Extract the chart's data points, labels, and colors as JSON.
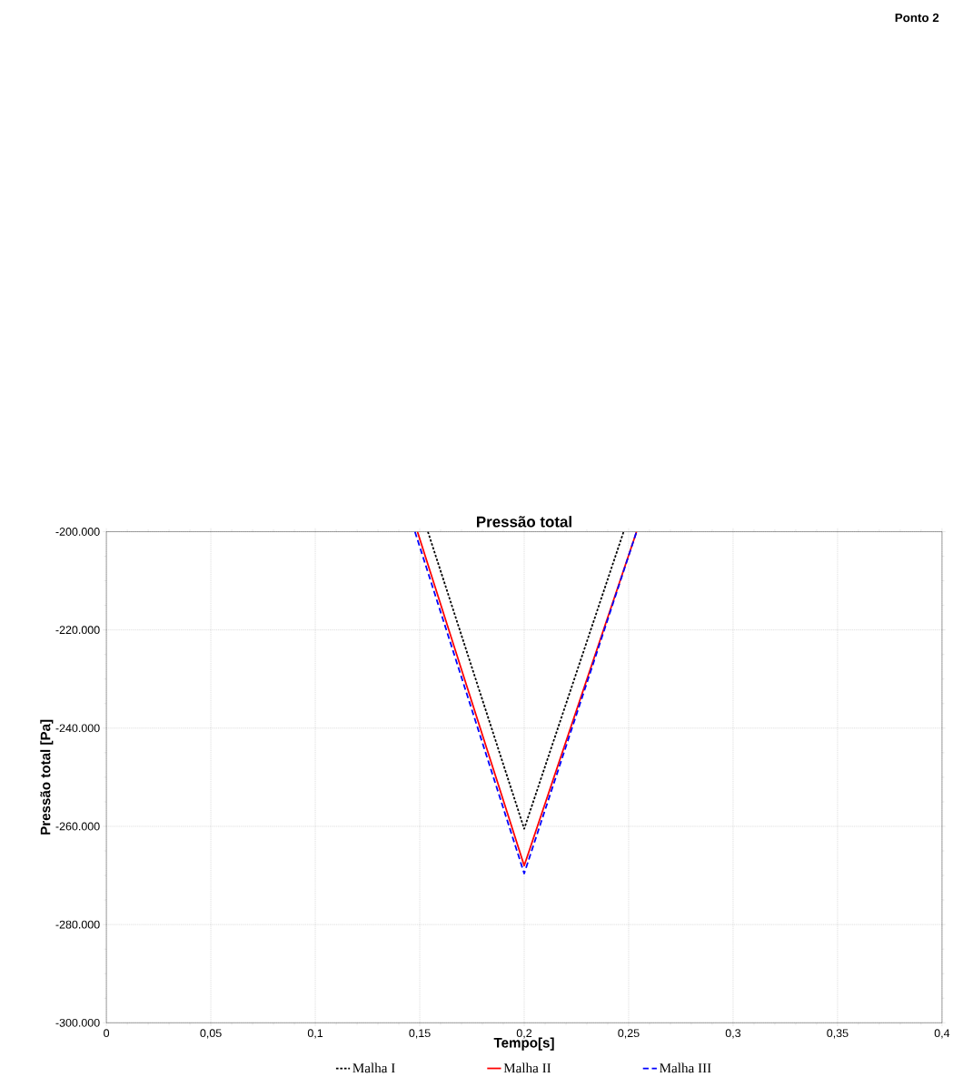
{
  "chart_data": {
    "type": "line",
    "title": "Pressão total",
    "xlabel": "Tempo[s]",
    "ylabel": "Pressão total [Pa]",
    "annotations": [
      "Ponto 2"
    ],
    "series": [
      {
        "name": "Malha I",
        "color": "#000000",
        "line_style": "dotted",
        "x": [
          0.1539,
          0.2,
          0.2476
        ],
        "values": [
          -200000,
          -260500,
          -200000
        ]
      },
      {
        "name": "Malha II",
        "color": "#ff0000",
        "line_style": "solid",
        "x": [
          0.1489,
          0.2,
          0.2538
        ],
        "values": [
          -200000,
          -268000,
          -200000
        ]
      },
      {
        "name": "Malha III",
        "color": "#0000ff",
        "line_style": "dashed",
        "x": [
          0.1477,
          0.2,
          0.2538
        ],
        "values": [
          -200000,
          -269600,
          -200000
        ]
      }
    ],
    "xlim": [
      0,
      0.4
    ],
    "ylim": [
      -300000,
      -200000
    ],
    "xticks": [
      0,
      {
        "value": 0.05,
        "label": "0,05"
      },
      {
        "value": 0.1,
        "label": "0,1"
      },
      {
        "value": 0.15,
        "label": "0,15"
      },
      {
        "value": 0.2,
        "label": "0,2"
      },
      {
        "value": 0.25,
        "label": "0,25"
      },
      {
        "value": 0.3,
        "label": "0,3"
      },
      {
        "value": 0.35,
        "label": "0,35"
      },
      {
        "value": 0.4,
        "label": "0,4"
      }
    ],
    "yticks": [
      {
        "value": -300000,
        "label": "-300.000"
      },
      {
        "value": -280000,
        "label": "-280.000"
      },
      {
        "value": -260000,
        "label": "-260.000"
      },
      {
        "value": -240000,
        "label": "-240.000"
      },
      {
        "value": -220000,
        "label": "-220.000"
      },
      {
        "value": -200000,
        "label": "-200.000"
      }
    ],
    "grid": true,
    "legend": "bottom",
    "marker": "none"
  }
}
